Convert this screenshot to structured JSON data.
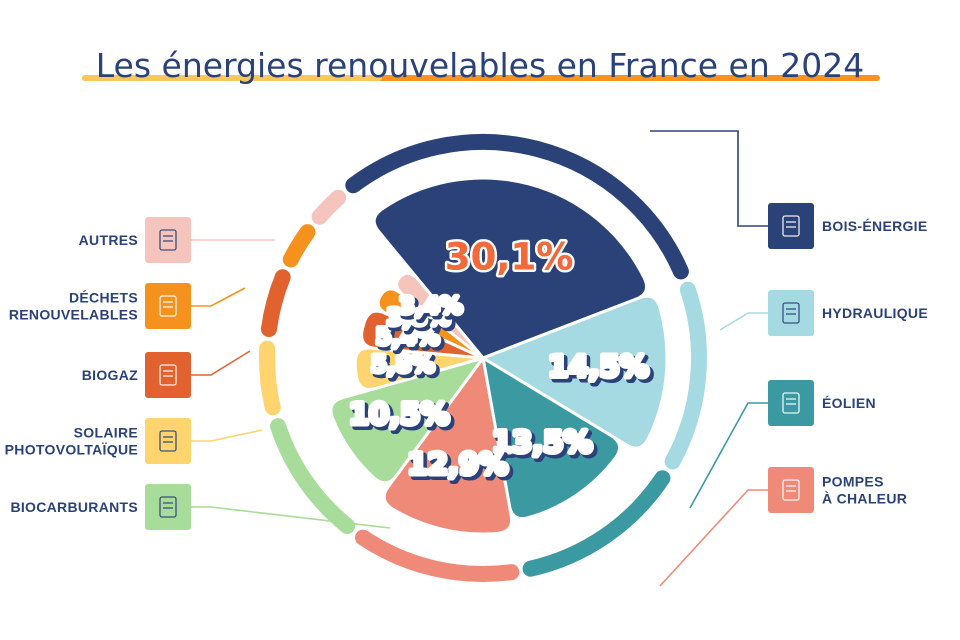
{
  "title": "Les énergies renouvelables en France en 2024",
  "colors": {
    "navy": "#2b4279",
    "underline": "#f7931e",
    "underline_light": "#fbd46a"
  },
  "chart_data": {
    "type": "pie",
    "title": "Les énergies renouvelables en France en 2024",
    "unit": "%",
    "slices": [
      {
        "label": "BOIS-ÉNERGIE",
        "value": 30.1,
        "value_label": "30,1%",
        "color": "#2b4279",
        "icon": "wood-stove-icon",
        "side": "right"
      },
      {
        "label": "HYDRAULIQUE",
        "value": 14.5,
        "value_label": "14,5%",
        "color": "#a6dae3",
        "icon": "dam-icon",
        "side": "right"
      },
      {
        "label": "ÉOLIEN",
        "value": 13.5,
        "value_label": "13,5%",
        "color": "#3a99a1",
        "icon": "wind-turbine-icon",
        "side": "right"
      },
      {
        "label": "POMPES\nÀ CHALEUR",
        "value": 12.9,
        "value_label": "12,9%",
        "color": "#ee8a77",
        "icon": "heat-pump-icon",
        "side": "right"
      },
      {
        "label": "BIOCARBURANTS",
        "value": 10.5,
        "value_label": "10,5%",
        "color": "#a8dc9a",
        "icon": "fuel-pump-icon",
        "side": "left"
      },
      {
        "label": "SOLAIRE\nPHOTOVOLTAÏQUE",
        "value": 5.8,
        "value_label": "5,8%",
        "color": "#fdd46e",
        "icon": "solar-panel-icon",
        "side": "left"
      },
      {
        "label": "BIOGAZ",
        "value": 5.4,
        "value_label": "5,4%",
        "color": "#e2622f",
        "icon": "flame-icon",
        "side": "left"
      },
      {
        "label": "DÉCHETS\nRENOUVELABLES",
        "value": 3.8,
        "value_label": "3,8%",
        "color": "#f5921e",
        "icon": "recycle-bin-icon",
        "side": "left"
      },
      {
        "label": "AUTRES",
        "value": 3.4,
        "value_label": "3,4%",
        "color": "#f5c5bd",
        "icon": "list-icon",
        "side": "left"
      }
    ]
  }
}
